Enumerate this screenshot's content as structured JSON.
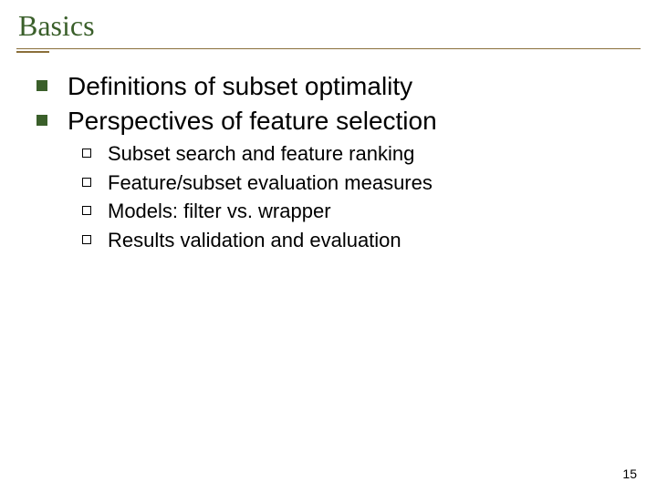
{
  "slide": {
    "title": "Basics",
    "title_color": "#3a5f2a",
    "title_fontsize": 32,
    "underline_color": "#8a6f3a",
    "bullets_lvl1": [
      "Definitions of subset optimality",
      "Perspectives of feature selection"
    ],
    "bullets_lvl2": [
      "Subset search and feature ranking",
      "Feature/subset evaluation measures",
      "Models: filter vs. wrapper",
      "Results validation and evaluation"
    ],
    "lvl1_bullet_color": "#3a5f2a",
    "lvl1_fontsize": 28,
    "lvl2_fontsize": 22,
    "page_number": "15",
    "background_color": "#ffffff"
  }
}
